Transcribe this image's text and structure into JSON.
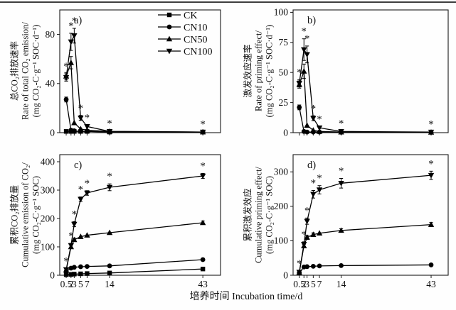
{
  "x_axis": {
    "title": "培养时间 Incubation time/d",
    "ticks": [
      0.5,
      2,
      3,
      5,
      7,
      14,
      43
    ],
    "tick_labels": [
      "0.5",
      "2",
      "3",
      "5",
      "7",
      "14",
      "43"
    ],
    "domain": [
      -1.5,
      48.5
    ]
  },
  "legend": {
    "entries": [
      {
        "label": "CK",
        "marker": "square"
      },
      {
        "label": "CN10",
        "marker": "circle"
      },
      {
        "label": "CN50",
        "marker": "triangle-up"
      },
      {
        "label": "CN100",
        "marker": "triangle-down"
      }
    ]
  },
  "chart_data": [
    {
      "type": "line",
      "panel_label": "a)",
      "ylabel_zh": "总CO₂排放速率",
      "ylabel_en": "Rate of total CO₂ emission/",
      "ylabel_unit": "(mg CO₂-C·g⁻¹ SOC·d⁻¹)",
      "ylim": [
        0,
        100
      ],
      "yticks": [
        0,
        40,
        80
      ],
      "x": [
        0.5,
        2,
        3,
        5,
        7,
        14,
        43
      ],
      "series": [
        {
          "name": "CK",
          "marker": "square",
          "values": [
            1,
            1,
            1,
            1,
            1,
            0.5,
            0.5
          ],
          "errors": [
            0.3,
            0.3,
            0.3,
            0.3,
            0.3,
            0.3,
            0.3
          ],
          "stars": [
            false,
            false,
            false,
            false,
            false,
            false,
            false
          ]
        },
        {
          "name": "CN10",
          "marker": "circle",
          "values": [
            27,
            2,
            1.5,
            1,
            1,
            0.5,
            0.5
          ],
          "errors": [
            2,
            0.3,
            0.3,
            0.3,
            0.3,
            0.3,
            0.3
          ],
          "stars": [
            false,
            false,
            false,
            false,
            false,
            false,
            false
          ]
        },
        {
          "name": "CN50",
          "marker": "triangle-up",
          "values": [
            46,
            57,
            8,
            3,
            2,
            1,
            0.5
          ],
          "errors": [
            3,
            5,
            1,
            0.5,
            0.5,
            0.3,
            0.3
          ],
          "stars": [
            false,
            false,
            false,
            false,
            false,
            false,
            false
          ]
        },
        {
          "name": "CN100",
          "marker": "triangle-down",
          "values": [
            45,
            74,
            79,
            12,
            5,
            1,
            0.5
          ],
          "errors": [
            3,
            7,
            6,
            2,
            1,
            0.5,
            0.5
          ],
          "stars": [
            true,
            true,
            true,
            true,
            true,
            true,
            true
          ]
        }
      ]
    },
    {
      "type": "line",
      "panel_label": "b)",
      "ylabel_zh": "激发效应速率",
      "ylabel_en": "Rate of priming effect/",
      "ylabel_unit": "(mg CO₂-C·g⁻¹ SOC·d⁻¹)",
      "ylim": [
        0,
        102
      ],
      "yticks": [
        0,
        25,
        50,
        75,
        100
      ],
      "x": [
        0.5,
        2,
        3,
        5,
        7,
        14,
        43
      ],
      "series": [
        {
          "name": "CN10",
          "marker": "circle",
          "values": [
            21,
            1,
            0.5,
            0.5,
            0.5,
            0.3,
            0.3
          ],
          "errors": [
            2,
            0.3,
            0.3,
            0.3,
            0.3,
            0.3,
            0.3
          ],
          "stars": [
            false,
            false,
            false,
            false,
            false,
            false,
            false
          ]
        },
        {
          "name": "CN50",
          "marker": "triangle-up",
          "values": [
            40,
            51,
            6,
            2,
            1,
            0.5,
            0.3
          ],
          "errors": [
            3,
            6,
            1,
            0.5,
            0.3,
            0.3,
            0.3
          ],
          "stars": [
            false,
            false,
            false,
            false,
            false,
            false,
            false
          ]
        },
        {
          "name": "CN100",
          "marker": "triangle-down",
          "values": [
            41,
            69,
            65,
            12,
            4,
            1,
            0.5
          ],
          "errors": [
            3,
            9,
            7,
            2,
            1,
            0.5,
            0.5
          ],
          "stars": [
            true,
            true,
            true,
            true,
            true,
            true,
            true
          ]
        }
      ]
    },
    {
      "type": "line",
      "panel_label": "c)",
      "ylabel_zh": "累积CO₂排放量",
      "ylabel_en": "Cumulative emission of CO₂/",
      "ylabel_unit": "(mg CO₂-C·g⁻¹ SOC)",
      "ylim": [
        0,
        425
      ],
      "yticks": [
        0,
        100,
        200,
        300,
        400
      ],
      "x": [
        0.5,
        2,
        3,
        5,
        7,
        14,
        43
      ],
      "series": [
        {
          "name": "CK",
          "marker": "square",
          "values": [
            2,
            3,
            4,
            5,
            6,
            8,
            22
          ],
          "errors": [
            1,
            1,
            1,
            1,
            1,
            1,
            2
          ],
          "stars": [
            false,
            false,
            false,
            false,
            false,
            false,
            false
          ]
        },
        {
          "name": "CN10",
          "marker": "circle",
          "values": [
            13,
            25,
            28,
            30,
            31,
            33,
            55
          ],
          "errors": [
            2,
            2,
            2,
            2,
            2,
            2,
            3
          ],
          "stars": [
            false,
            false,
            false,
            false,
            false,
            false,
            false
          ]
        },
        {
          "name": "CN50",
          "marker": "triangle-up",
          "values": [
            18,
            100,
            125,
            136,
            141,
            150,
            185
          ],
          "errors": [
            3,
            5,
            6,
            5,
            5,
            5,
            6
          ],
          "stars": [
            false,
            false,
            false,
            false,
            false,
            false,
            false
          ]
        },
        {
          "name": "CN100",
          "marker": "triangle-down",
          "values": [
            20,
            105,
            180,
            268,
            290,
            310,
            350
          ],
          "errors": [
            4,
            7,
            9,
            8,
            8,
            12,
            9
          ],
          "stars": [
            true,
            true,
            true,
            true,
            true,
            true,
            true
          ]
        }
      ]
    },
    {
      "type": "line",
      "panel_label": "d)",
      "ylabel_zh": "累积激发效应",
      "ylabel_en": "Cumulative priming effect/",
      "ylabel_unit": "(mg CO₂-C·g⁻¹ SOC)",
      "ylim": [
        0,
        350
      ],
      "yticks": [
        0,
        100,
        200,
        300
      ],
      "x": [
        0.5,
        2,
        3,
        5,
        7,
        14,
        43
      ],
      "series": [
        {
          "name": "CN10",
          "marker": "circle",
          "values": [
            7,
            24,
            25,
            26,
            27,
            28,
            30
          ],
          "errors": [
            1,
            2,
            2,
            2,
            2,
            2,
            2
          ],
          "stars": [
            false,
            false,
            false,
            false,
            false,
            false,
            false
          ]
        },
        {
          "name": "CN50",
          "marker": "triangle-up",
          "values": [
            8,
            85,
            110,
            118,
            122,
            130,
            147
          ],
          "errors": [
            2,
            5,
            6,
            5,
            4,
            5,
            6
          ],
          "stars": [
            false,
            false,
            false,
            false,
            false,
            false,
            false
          ]
        },
        {
          "name": "CN100",
          "marker": "triangle-down",
          "values": [
            9,
            90,
            157,
            235,
            248,
            267,
            290
          ],
          "errors": [
            3,
            7,
            9,
            11,
            12,
            14,
            12
          ],
          "stars": [
            true,
            true,
            true,
            true,
            true,
            true,
            true
          ]
        }
      ]
    }
  ]
}
